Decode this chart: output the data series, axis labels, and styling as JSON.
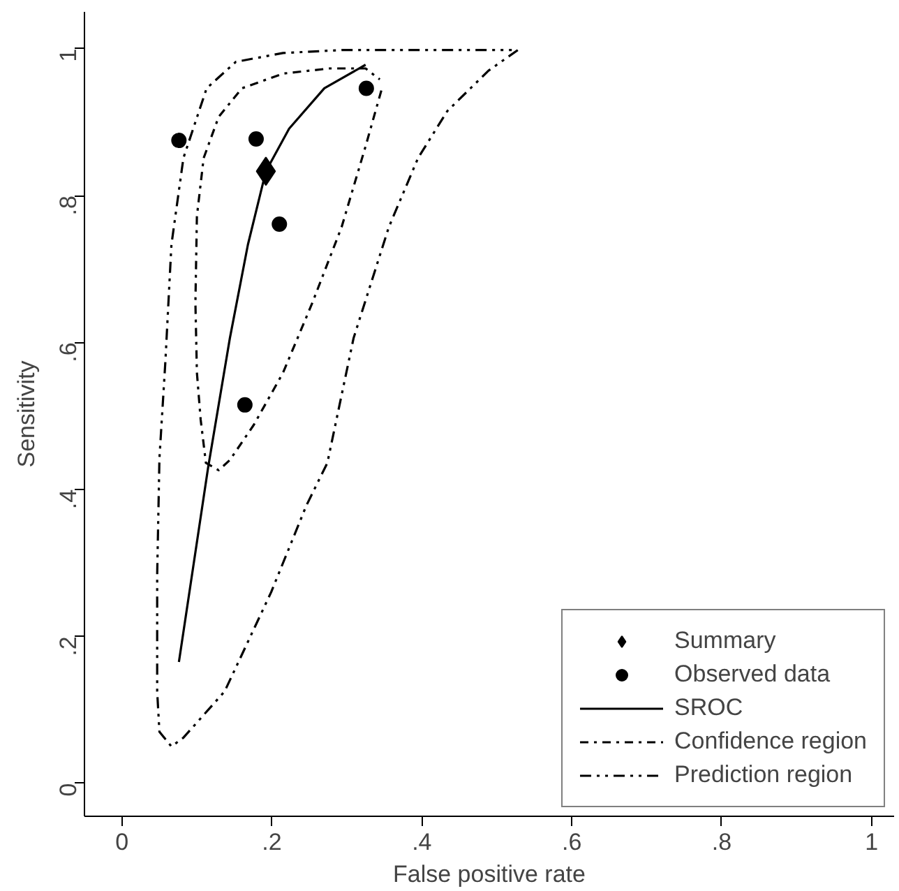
{
  "chart_data": {
    "type": "line",
    "xlabel": "False positive rate",
    "ylabel": "Sensitivity",
    "xlim": [
      -0.05,
      1.03
    ],
    "ylim": [
      -0.045,
      1.05
    ],
    "xticks": [
      0,
      {
        "value": 0.2,
        "label": ".2"
      },
      {
        "value": 0.4,
        "label": ".4"
      },
      {
        "value": 0.6,
        "label": ".6"
      },
      {
        "value": 0.8,
        "label": ".8"
      },
      1
    ],
    "yticks": [
      0,
      {
        "value": 0.2,
        "label": ".2"
      },
      {
        "value": 0.4,
        "label": ".4"
      },
      {
        "value": 0.6,
        "label": ".6"
      },
      {
        "value": 0.8,
        "label": ".8"
      },
      1
    ],
    "grid": false,
    "legend": "bottom right",
    "series": [
      {
        "name": "Summary",
        "type": "scatter",
        "marker": "diamond",
        "color": "#000000",
        "x": [
          0.192
        ],
        "values": [
          0.833
        ]
      },
      {
        "name": "Observed data",
        "type": "scatter",
        "marker": "circle",
        "color": "#000000",
        "x": [
          0.076,
          0.179,
          0.21,
          0.326,
          0.164
        ],
        "values": [
          0.875,
          0.877,
          0.761,
          0.946,
          0.515
        ]
      },
      {
        "name": "SROC",
        "line_style": "solid",
        "color": "#000000",
        "x": [
          0.076,
          0.115,
          0.144,
          0.168,
          0.192,
          0.223,
          0.27,
          0.325
        ],
        "values": [
          0.165,
          0.43,
          0.606,
          0.733,
          0.833,
          0.891,
          0.946,
          0.978
        ]
      },
      {
        "name": "Confidence region",
        "line_style": "dashdot",
        "color": "#000000",
        "x": [
          0.346,
          0.325,
          0.293,
          0.254,
          0.215,
          0.176,
          0.144,
          0.129,
          0.112,
          0.105,
          0.1,
          0.098,
          0.1,
          0.109,
          0.129,
          0.16,
          0.215,
          0.277,
          0.325,
          0.344
        ],
        "values": [
          0.943,
          0.867,
          0.757,
          0.654,
          0.559,
          0.488,
          0.44,
          0.426,
          0.436,
          0.495,
          0.559,
          0.654,
          0.772,
          0.851,
          0.907,
          0.946,
          0.966,
          0.973,
          0.973,
          0.958
        ]
      },
      {
        "name": "Prediction region",
        "line_style": "dashdotdot",
        "color": "#000000",
        "x": [
          0.528,
          0.489,
          0.434,
          0.395,
          0.356,
          0.309,
          0.274,
          0.246,
          0.199,
          0.137,
          0.082,
          0.066,
          0.05,
          0.047,
          0.047,
          0.05,
          0.058,
          0.066,
          0.082,
          0.113,
          0.152,
          0.215,
          0.293,
          0.52
        ],
        "values": [
          0.998,
          0.97,
          0.915,
          0.851,
          0.757,
          0.606,
          0.436,
          0.378,
          0.26,
          0.125,
          0.062,
          0.05,
          0.07,
          0.125,
          0.283,
          0.442,
          0.575,
          0.733,
          0.851,
          0.946,
          0.982,
          0.994,
          0.998,
          0.998
        ]
      }
    ]
  }
}
